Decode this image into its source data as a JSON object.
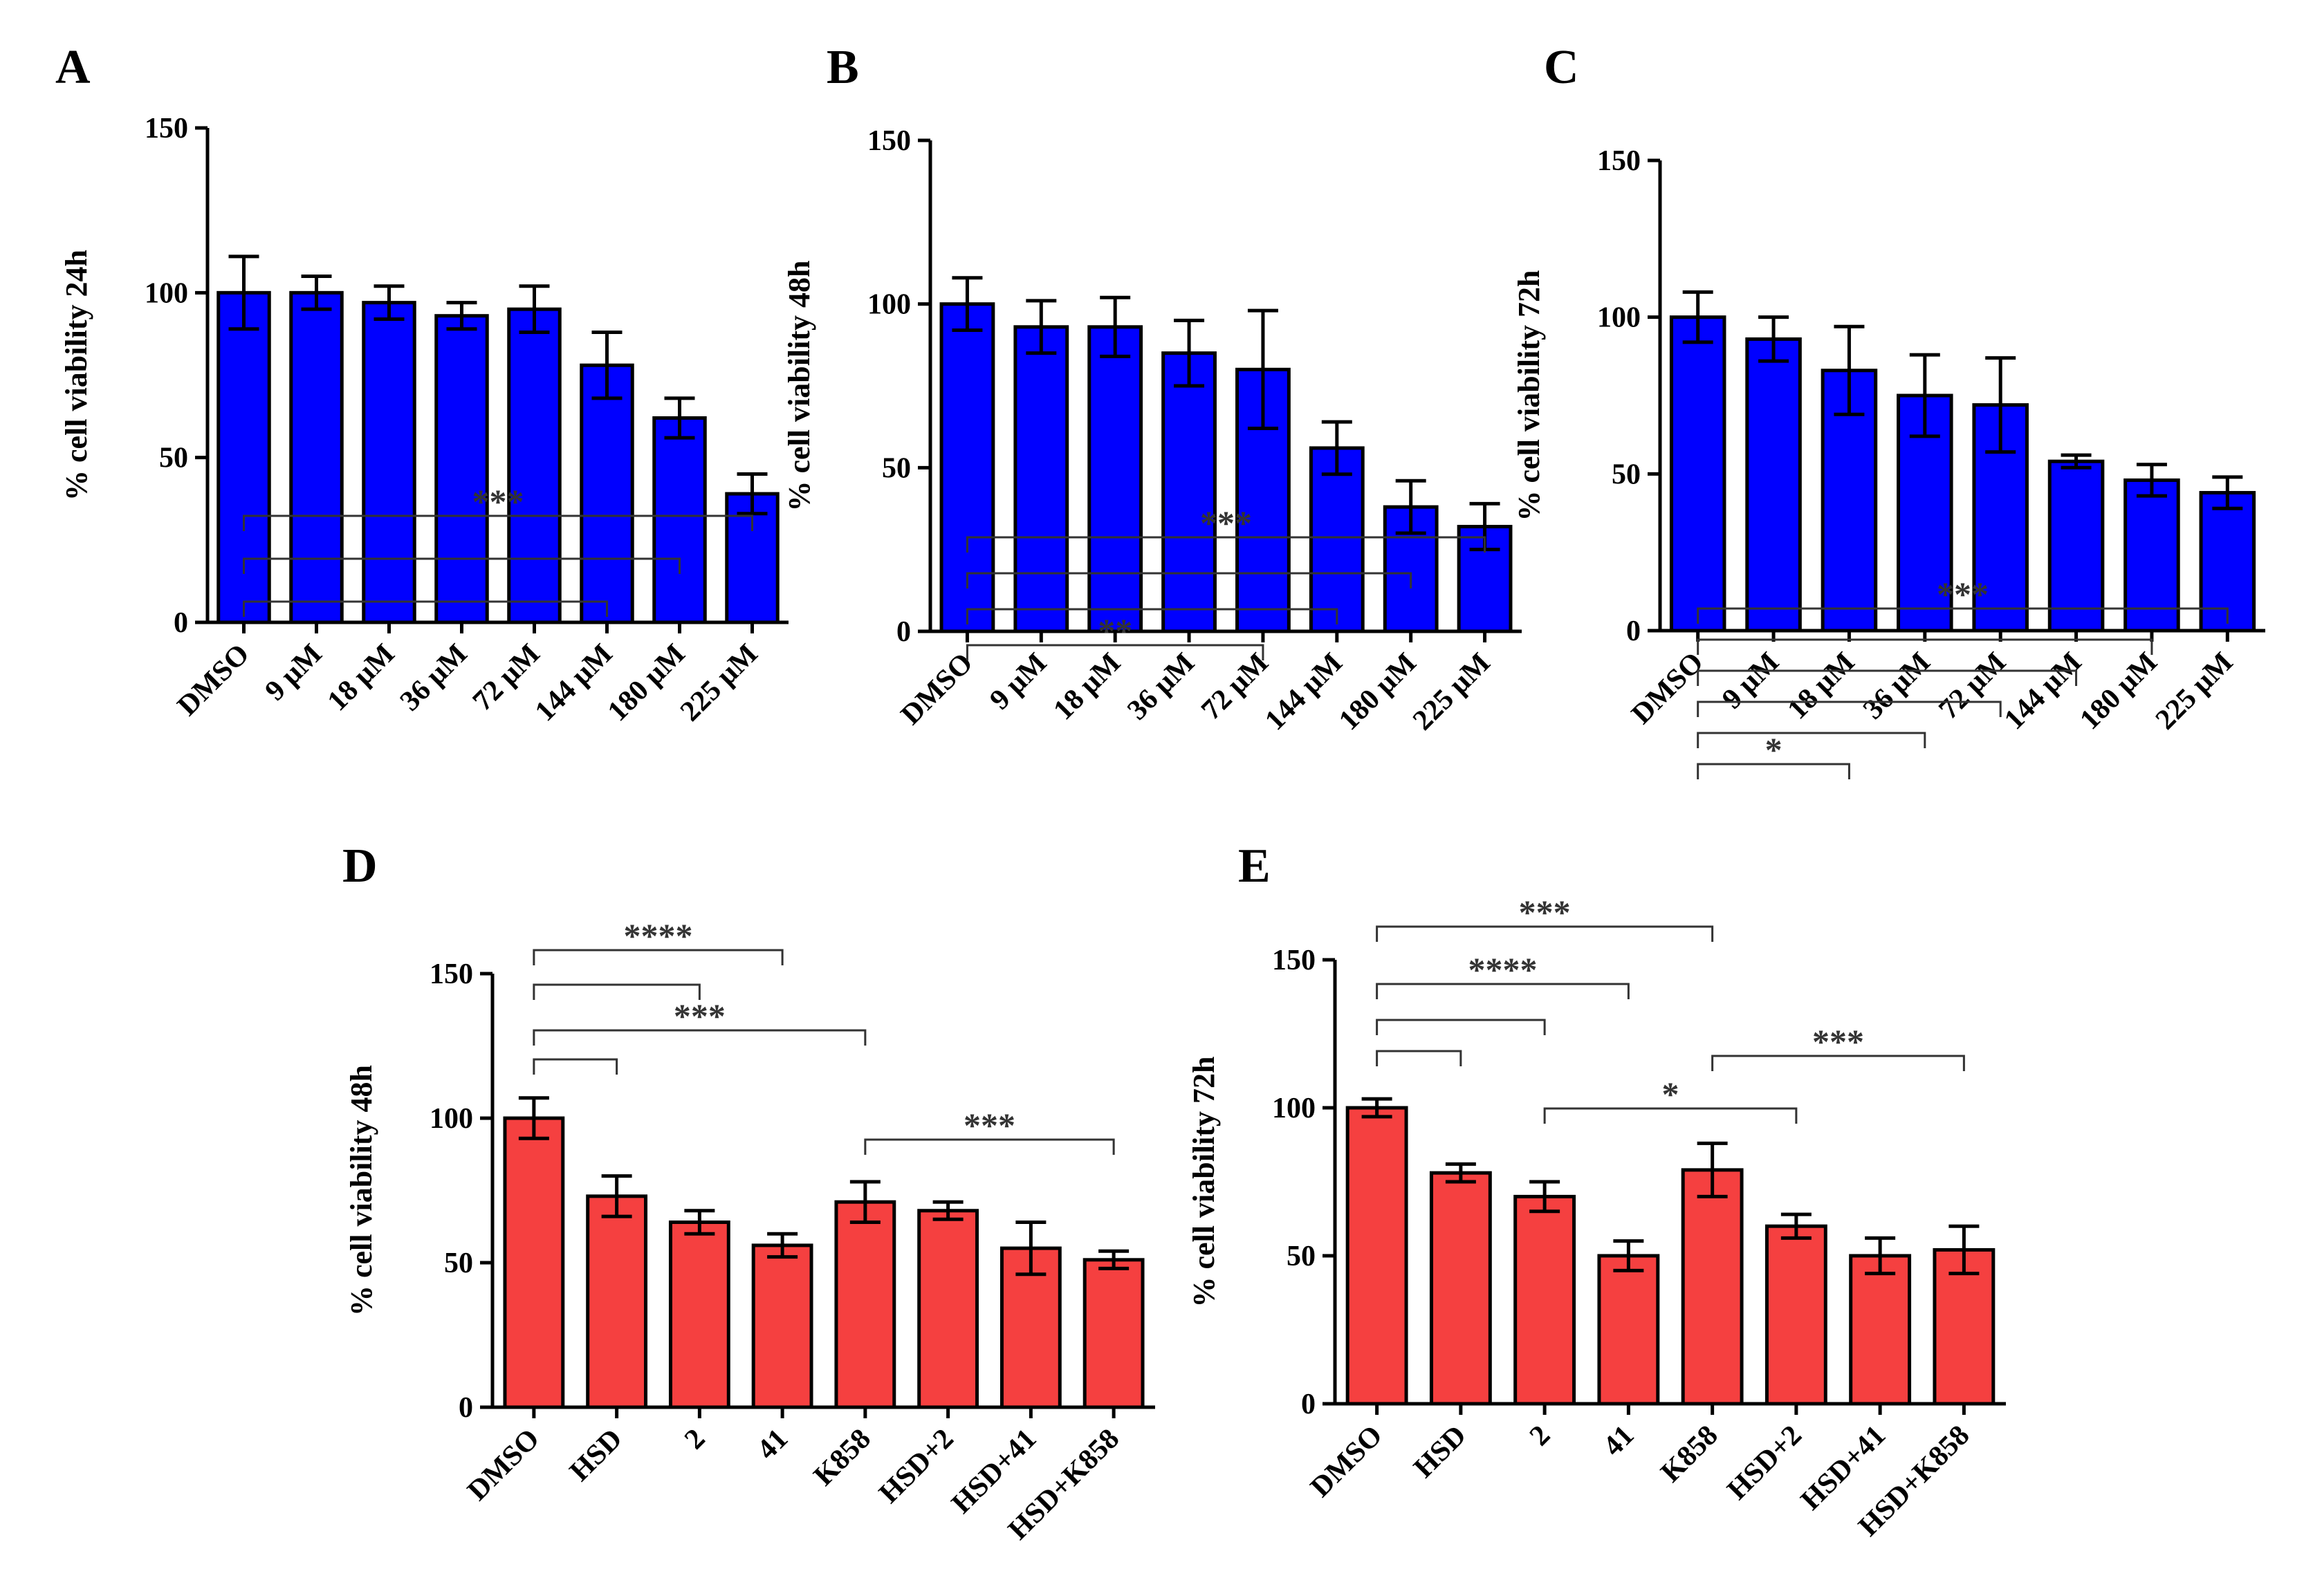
{
  "chart_data": [
    {
      "panel": "A",
      "type": "bar",
      "ylabel": "% cell viability 24h",
      "ylim": [
        0,
        150
      ],
      "yticks": [
        0,
        50,
        100,
        150
      ],
      "bar_color": "#0000ff",
      "categories": [
        "DMSO",
        "9 µM",
        "18 µM",
        "36 µM",
        "72 µM",
        "144 µM",
        "180 µM",
        "225 µM"
      ],
      "values": [
        100,
        100,
        97,
        93,
        95,
        78,
        62,
        39
      ],
      "errors": [
        11,
        5,
        5,
        4,
        7,
        10,
        6,
        6
      ],
      "significance": [
        {
          "from": 0,
          "to": 5,
          "label": ""
        },
        {
          "from": 0,
          "to": 6,
          "label": ""
        },
        {
          "from": 0,
          "to": 7,
          "label": "***"
        }
      ]
    },
    {
      "panel": "B",
      "type": "bar",
      "ylabel": "% cell viability 48h",
      "ylim": [
        0,
        150
      ],
      "yticks": [
        0,
        50,
        100,
        150
      ],
      "bar_color": "#0000ff",
      "categories": [
        "DMSO",
        "9 µM",
        "18 µM",
        "36 µM",
        "72 µM",
        "144 µM",
        "180 µM",
        "225 µM"
      ],
      "values": [
        100,
        93,
        93,
        85,
        80,
        56,
        38,
        32
      ],
      "errors": [
        8,
        8,
        9,
        10,
        18,
        8,
        8,
        7
      ],
      "significance": [
        {
          "from": 0,
          "to": 4,
          "label": "**"
        },
        {
          "from": 0,
          "to": 5,
          "label": ""
        },
        {
          "from": 0,
          "to": 6,
          "label": ""
        },
        {
          "from": 0,
          "to": 7,
          "label": "***"
        }
      ]
    },
    {
      "panel": "C",
      "type": "bar",
      "ylabel": "% cell viability 72h",
      "ylim": [
        0,
        150
      ],
      "yticks": [
        0,
        50,
        100,
        150
      ],
      "bar_color": "#0000ff",
      "categories": [
        "DMSO",
        "9 µM",
        "18 µM",
        "36 µM",
        "72 µM",
        "144 µM",
        "180 µM",
        "225 µM"
      ],
      "values": [
        100,
        93,
        83,
        75,
        72,
        54,
        48,
        44
      ],
      "errors": [
        8,
        7,
        14,
        13,
        15,
        2,
        5,
        5
      ],
      "significance": [
        {
          "from": 0,
          "to": 2,
          "label": "*"
        },
        {
          "from": 0,
          "to": 3,
          "label": ""
        },
        {
          "from": 0,
          "to": 4,
          "label": ""
        },
        {
          "from": 0,
          "to": 5,
          "label": ""
        },
        {
          "from": 0,
          "to": 6,
          "label": ""
        },
        {
          "from": 0,
          "to": 7,
          "label": "***"
        }
      ]
    },
    {
      "panel": "D",
      "type": "bar",
      "ylabel": "% cell viability 48h",
      "ylim": [
        0,
        150
      ],
      "yticks": [
        0,
        50,
        100,
        150
      ],
      "bar_color": "#f54040",
      "categories": [
        "DMSO",
        "HSD",
        "2",
        "41",
        "K858",
        "HSD+2",
        "HSD+41",
        "HSD+K858"
      ],
      "values": [
        100,
        73,
        64,
        56,
        71,
        68,
        55,
        51
      ],
      "errors": [
        7,
        7,
        4,
        4,
        7,
        3,
        9,
        3
      ],
      "significance": [
        {
          "from": 0,
          "to": 1,
          "label": ""
        },
        {
          "from": 0,
          "to": 4,
          "label": "***"
        },
        {
          "from": 0,
          "to": 2,
          "label": ""
        },
        {
          "from": 0,
          "to": 3,
          "label": "****"
        },
        {
          "from": 4,
          "to": 7,
          "label": "***"
        }
      ]
    },
    {
      "panel": "E",
      "type": "bar",
      "ylabel": "% cell viability 72h",
      "ylim": [
        0,
        150
      ],
      "yticks": [
        0,
        50,
        100,
        150
      ],
      "bar_color": "#f54040",
      "categories": [
        "DMSO",
        "HSD",
        "2",
        "41",
        "K858",
        "HSD+2",
        "HSD+41",
        "HSD+K858"
      ],
      "values": [
        100,
        78,
        70,
        50,
        79,
        60,
        50,
        52
      ],
      "errors": [
        3,
        3,
        5,
        5,
        9,
        4,
        6,
        8
      ],
      "significance": [
        {
          "from": 0,
          "to": 1,
          "label": ""
        },
        {
          "from": 0,
          "to": 2,
          "label": ""
        },
        {
          "from": 0,
          "to": 3,
          "label": "****"
        },
        {
          "from": 0,
          "to": 4,
          "label": "***"
        },
        {
          "from": 2,
          "to": 5,
          "label": "*"
        },
        {
          "from": 4,
          "to": 7,
          "label": "***"
        }
      ]
    }
  ]
}
